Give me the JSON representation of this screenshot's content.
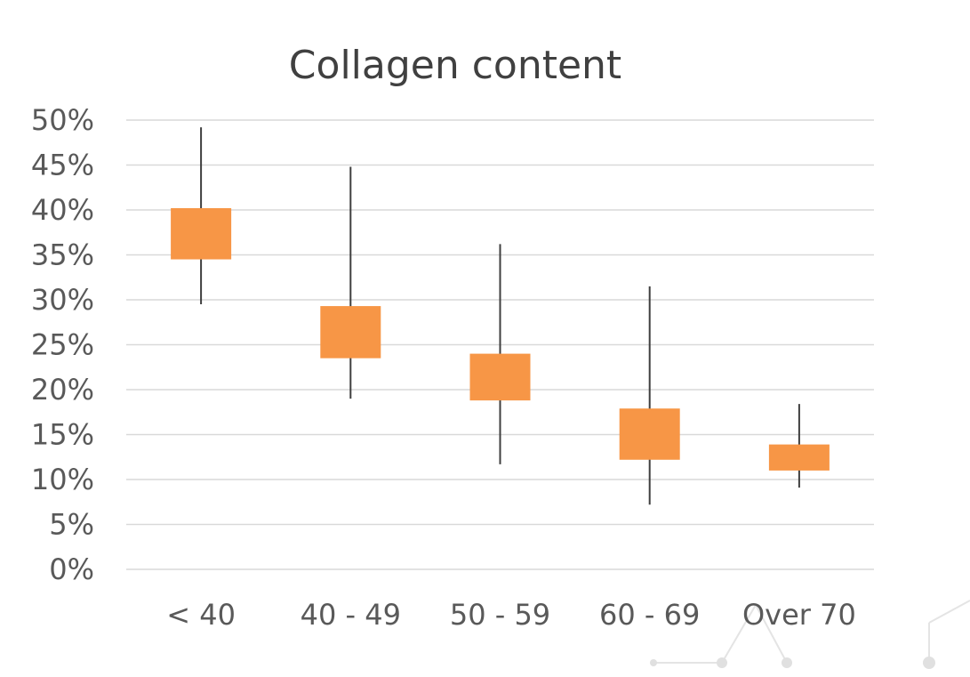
{
  "chart_data": {
    "type": "candlestick",
    "title": "Collagen content",
    "xlabel": "",
    "ylabel": "",
    "ylim": [
      0,
      50
    ],
    "y_ticks": [
      "0%",
      "5%",
      "10%",
      "15%",
      "20%",
      "25%",
      "30%",
      "35%",
      "40%",
      "45%",
      "50%"
    ],
    "y_tick_values": [
      0,
      5,
      10,
      15,
      20,
      25,
      30,
      35,
      40,
      45,
      50
    ],
    "categories": [
      "< 40",
      "40 - 49",
      "50 - 59",
      "60 - 69",
      "Over 70"
    ],
    "series": [
      {
        "values": [
          {
            "low": 29.5,
            "box_low": 34.5,
            "box_high": 40.2,
            "high": 49.2
          },
          {
            "low": 19.0,
            "box_low": 23.5,
            "box_high": 29.3,
            "high": 44.8
          },
          {
            "low": 11.7,
            "box_low": 18.8,
            "box_high": 24.0,
            "high": 36.2
          },
          {
            "low": 7.2,
            "box_low": 12.2,
            "box_high": 17.9,
            "high": 31.5
          },
          {
            "low": 9.1,
            "box_low": 11.0,
            "box_high": 13.9,
            "high": 18.4
          }
        ]
      }
    ],
    "grid": true,
    "legend": "none",
    "colors": {
      "box": "#F79646",
      "whisker": "#3F3F3F",
      "grid": "#D9D9D9",
      "text": "#595959"
    }
  }
}
